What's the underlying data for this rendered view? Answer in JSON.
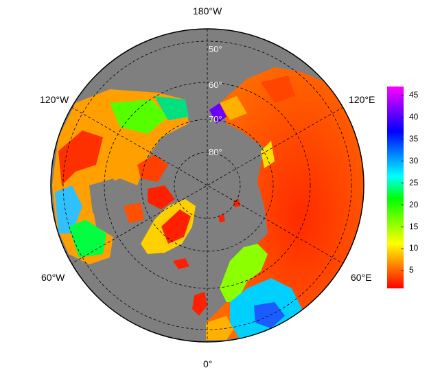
{
  "map": {
    "projection": "north polar stereographic",
    "ocean_color": "#7f7f7f",
    "background_color": "#ffffff",
    "graticule_style": "dashed",
    "longitude_labels": [
      {
        "id": "lon-180w",
        "text": "180°W"
      },
      {
        "id": "lon-120w",
        "text": "120°W"
      },
      {
        "id": "lon-120e",
        "text": "120°E"
      },
      {
        "id": "lon-60w",
        "text": "60°W"
      },
      {
        "id": "lon-60e",
        "text": "60°E"
      },
      {
        "id": "lon-0",
        "text": "0°"
      }
    ],
    "latitude_labels": [
      "50°",
      "60°",
      "70°",
      "80°"
    ]
  },
  "colorbar": {
    "min": 1,
    "max": 47,
    "ticks": [
      "45",
      "40",
      "35",
      "30",
      "25",
      "20",
      "15",
      "10",
      "5"
    ],
    "tick_values": [
      45,
      40,
      35,
      30,
      25,
      20,
      15,
      10,
      5
    ],
    "colors": [
      "#ff0000",
      "#ff7f00",
      "#ffff00",
      "#7fff00",
      "#00ff00",
      "#00ffff",
      "#0080ff",
      "#0000ff",
      "#7f00ff",
      "#ff00ff"
    ]
  }
}
